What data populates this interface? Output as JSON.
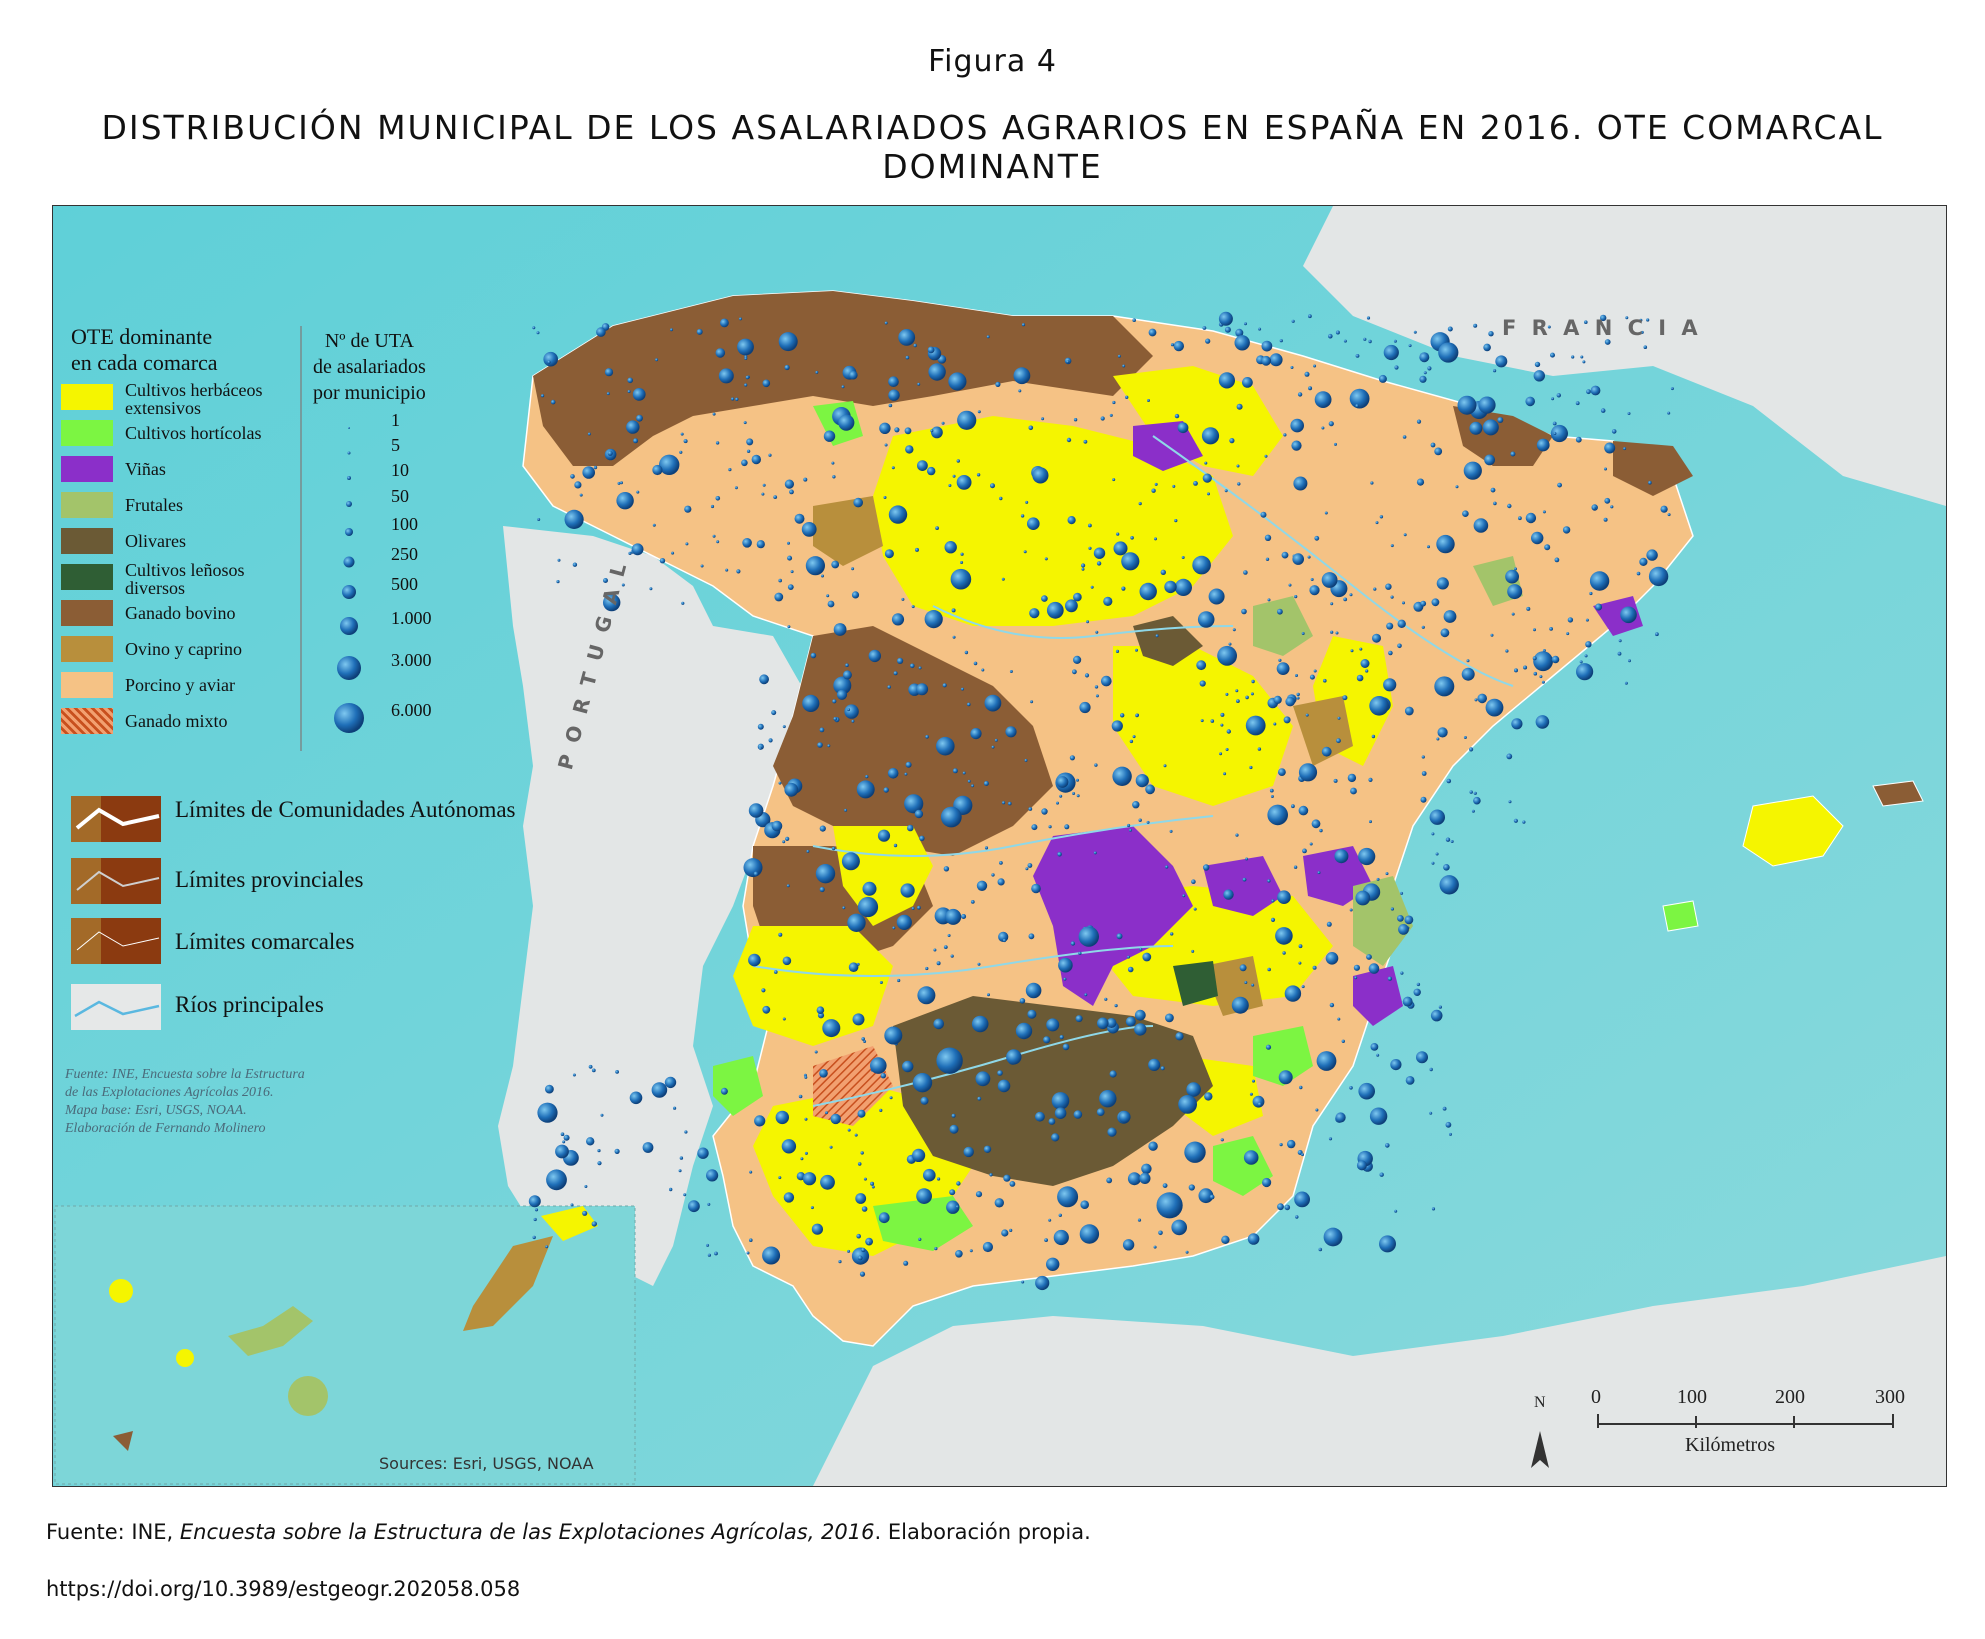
{
  "figure": {
    "label": "Figura 4",
    "title": "DISTRIBUCIÓN MUNICIPAL DE LOS ASALARIADOS AGRARIOS EN ESPAÑA EN 2016. OTE COMARCAL DOMINANTE"
  },
  "legend_ote": {
    "title_line1": "OTE dominante",
    "title_line2": "en cada comarca",
    "items": [
      {
        "label": "Cultivos herbáceos extensivos",
        "color": "#f5f500"
      },
      {
        "label": "Cultivos hortícolas",
        "color": "#7cf542"
      },
      {
        "label": "Viñas",
        "color": "#8b2fc9"
      },
      {
        "label": "Frutales",
        "color": "#a3c46a"
      },
      {
        "label": "Olivares",
        "color": "#6b5a35"
      },
      {
        "label": "Cultivos leñosos diversos",
        "color": "#2f5e34"
      },
      {
        "label": "Ganado bovino",
        "color": "#8b5d35"
      },
      {
        "label": "Ovino y caprino",
        "color": "#b88f3c"
      },
      {
        "label": "Porcino y aviar",
        "color": "#f5c285"
      },
      {
        "label": "Ganado mixto",
        "color": "#e07a40"
      }
    ]
  },
  "legend_size": {
    "title_line1": "Nº de UTA",
    "title_line2": "de asalariados",
    "title_line3": "por municipio",
    "values": [
      "1",
      "5",
      "10",
      "50",
      "100",
      "250",
      "500",
      "1.000",
      "3.000",
      "6.000"
    ]
  },
  "legend_boundaries": [
    {
      "label": "Límites de Comunidades Autónomas"
    },
    {
      "label": "Límites provinciales"
    },
    {
      "label": "Límites comarcales"
    },
    {
      "label": "Ríos principales"
    }
  ],
  "map_source_note": {
    "line1": "Fuente: INE, Encuesta sobre la Estructura",
    "line2": "de las Explotaciones Agrícolas 2016.",
    "line3": "Mapa base: Esri, USGS, NOAA.",
    "line4": "Elaboración de Fernando Molinero"
  },
  "place_labels": {
    "francia": "F R A N C I A",
    "portugal": "P O R T U G A L"
  },
  "scale_bar": {
    "north": "N",
    "ticks": [
      "0",
      "100",
      "200",
      "300"
    ],
    "unit": "Kilómetros"
  },
  "canary_credit": "Sources: Esri, USGS, NOAA",
  "footer": {
    "source_prefix": "Fuente: INE, ",
    "source_title": "Encuesta sobre la Estructura de las Explotaciones Agrícolas, 2016",
    "source_suffix": ". Elaboración propia.",
    "doi": "https://doi.org/10.3989/estgeogr.202058.058"
  }
}
